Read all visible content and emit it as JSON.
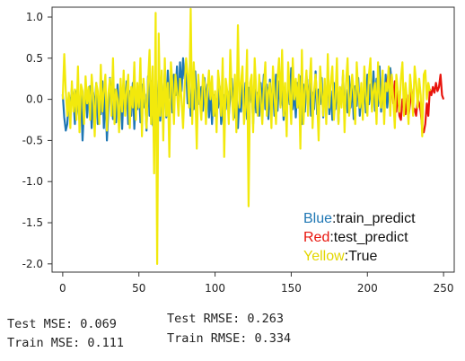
{
  "chart_data": {
    "type": "line",
    "title": "",
    "xlabel": "",
    "ylabel": "",
    "xlim": [
      -7,
      257
    ],
    "ylim": [
      -2.1,
      1.12
    ],
    "x_ticks": [
      0,
      50,
      100,
      150,
      200,
      250
    ],
    "y_ticks": [
      1.0,
      0.5,
      0.0,
      -0.5,
      -1.0,
      -1.5,
      -2.0
    ],
    "grid": false,
    "series": [
      {
        "color": "#1f77b4",
        "start": 0,
        "values": [
          0.06,
          -0.22,
          -0.38,
          -0.3,
          0.05,
          -0.1,
          0.14,
          0.0,
          -0.3,
          0.1,
          -0.05,
          -0.26,
          0.06,
          -0.5,
          -0.1,
          0.17,
          -0.22,
          0.04,
          0.16,
          -0.35,
          0.08,
          -0.14,
          0.2,
          -0.3,
          0.0,
          -0.18,
          0.22,
          -0.35,
          0.1,
          -0.5,
          -0.12,
          0.26,
          -0.05,
          -0.24,
          0.12,
          -0.28,
          0.18,
          -0.12,
          0.06,
          -0.36,
          0.14,
          -0.08,
          0.22,
          -0.3,
          0.1,
          -0.2,
          0.2,
          -0.36,
          0.06,
          -0.12,
          0.14,
          -0.28,
          0.18,
          -0.1,
          0.06,
          -0.38,
          0.28,
          -0.2,
          0.22,
          -0.3,
          -0.35,
          0.12,
          -0.18,
          0.3,
          -0.26,
          0.14,
          -0.08,
          0.32,
          -0.22,
          0.35,
          0.02,
          0.24,
          -0.16,
          0.3,
          0.05,
          0.4,
          -0.1,
          0.45,
          0.1,
          0.5,
          0.25,
          0.35,
          -0.05,
          0.22,
          -0.2,
          0.18,
          -0.12,
          0.34,
          -0.08,
          0.2,
          -0.06,
          0.15,
          -0.14,
          0.26,
          -0.04,
          0.18,
          -0.22,
          0.1,
          -0.3,
          0.05,
          -0.2,
          0.0,
          -0.1,
          0.16,
          -0.3,
          -0.15,
          0.05,
          -0.12,
          0.1,
          -0.2,
          0.06,
          0.25,
          -0.06,
          -0.22,
          0.1,
          -0.35,
          0.02,
          -0.15,
          0.18,
          -0.1,
          0.2,
          -0.24,
          0.14,
          -0.04,
          0.22,
          -0.3,
          0.12,
          -0.16,
          0.08,
          -0.2,
          0.2,
          -0.08,
          0.3,
          -0.12,
          0.18,
          -0.24,
          0.24,
          -0.1,
          0.16,
          -0.2,
          0.3,
          -0.14,
          0.22,
          -0.08,
          0.12,
          -0.25,
          0.05,
          -0.18,
          0.18,
          -0.06,
          0.38,
          -0.12,
          0.1,
          -0.22,
          0.2,
          -0.1,
          0.28,
          -0.3,
          0.18,
          -0.15,
          0.3,
          -0.05,
          0.24,
          -0.2,
          0.08,
          -0.12,
          0.34,
          -0.18,
          0.12,
          -0.06,
          0.26,
          -0.22,
          0.16,
          -0.1,
          0.32,
          -0.18,
          0.1,
          -0.25,
          0.2,
          -0.12,
          0.22,
          -0.28,
          0.14,
          -0.05,
          0.3,
          -0.2,
          0.12,
          -0.16,
          0.28,
          -0.1,
          0.2,
          -0.24,
          0.16,
          -0.08,
          0.26,
          -0.2,
          0.1,
          -0.12,
          0.22,
          -0.16,
          0.3,
          -0.06,
          0.18,
          -0.12,
          0.34,
          -0.14,
          0.25,
          -0.08,
          0.4,
          -0.15,
          0.2,
          -0.2,
          0.3,
          -0.1,
          0.12,
          0.38,
          0.2
        ]
      },
      {
        "color": "#e8150d",
        "start": 213,
        "values": [
          0.2,
          0.35,
          0.12,
          0.28,
          -0.05,
          0.22,
          -0.15,
          0.1,
          -0.2,
          -0.25,
          0.0,
          -0.1,
          -0.18,
          0.05,
          -0.22,
          -0.05,
          0.12,
          -0.1,
          -0.12,
          -0.2,
          0.0,
          -0.05,
          -0.15,
          -0.35,
          -0.4,
          -0.3,
          -0.05,
          -0.2,
          0.12,
          0.05,
          0.15,
          0.08,
          0.2,
          0.1,
          0.15,
          0.3,
          0.05,
          0.0
        ]
      },
      {
        "color": "#f2e90c",
        "start": 0,
        "values": [
          0.0,
          0.55,
          0.1,
          -0.2,
          0.08,
          -0.35,
          0.22,
          -0.15,
          0.12,
          -0.25,
          0.4,
          -0.4,
          0.18,
          0.1,
          -0.3,
          0.28,
          -0.05,
          0.15,
          -0.25,
          0.3,
          0.05,
          -0.45,
          0.2,
          0.1,
          -0.3,
          0.42,
          -0.15,
          0.1,
          0.3,
          -0.38,
          0.08,
          0.25,
          -0.2,
          0.5,
          -0.3,
          0.12,
          0.0,
          -0.4,
          0.25,
          -0.15,
          0.35,
          -0.2,
          0.1,
          0.3,
          -0.35,
          0.15,
          -0.1,
          0.45,
          -0.25,
          0.2,
          -0.1,
          0.5,
          -0.45,
          0.25,
          0.0,
          -0.35,
          0.2,
          0.6,
          -0.3,
          0.4,
          -0.9,
          1.05,
          -2.0,
          0.8,
          -0.2,
          0.35,
          -0.5,
          0.5,
          -0.2,
          0.2,
          -0.7,
          0.45,
          0.2,
          -0.3,
          0.3,
          0.1,
          -0.2,
          0.25,
          0.0,
          -0.35,
          0.15,
          0.5,
          0.3,
          -0.1,
          1.1,
          -0.3,
          0.45,
          0.1,
          -0.6,
          0.3,
          0.0,
          -0.25,
          0.3,
          0.2,
          -0.3,
          0.12,
          0.35,
          0.0,
          0.28,
          -0.2,
          0.1,
          -0.4,
          0.35,
          0.15,
          -0.2,
          0.5,
          -0.7,
          0.25,
          0.1,
          -0.3,
          0.6,
          0.05,
          -0.25,
          0.3,
          -0.4,
          0.9,
          -0.1,
          0.2,
          0.4,
          -0.3,
          -0.1,
          0.6,
          -1.3,
          0.2,
          0.3,
          -0.4,
          0.5,
          0.1,
          -0.2,
          0.3,
          0.0,
          -0.3,
          0.15,
          0.45,
          -0.2,
          0.1,
          0.2,
          -0.35,
          0.4,
          0.05,
          -0.3,
          0.25,
          0.5,
          -0.1,
          0.6,
          -0.2,
          0.2,
          -0.45,
          0.45,
          0.1,
          -0.3,
          0.5,
          0.0,
          0.25,
          -0.1,
          0.3,
          -0.6,
          0.6,
          -0.3,
          0.1,
          0.35,
          -0.2,
          0.2,
          0.5,
          -0.35,
          0.1,
          0.3,
          0.0,
          -0.5,
          0.4,
          0.1,
          -0.2,
          0.25,
          -0.3,
          0.55,
          -0.1,
          0.2,
          0.4,
          -0.25,
          0.0,
          0.5,
          -0.3,
          0.15,
          -0.1,
          0.35,
          -0.4,
          0.2,
          0.5,
          -0.2,
          0.0,
          0.3,
          0.1,
          -0.3,
          0.45,
          0.1,
          -0.1,
          0.2,
          -0.25,
          0.4,
          0.05,
          -0.2,
          0.3,
          0.5,
          -0.15,
          0.1,
          0.2,
          -0.3,
          0.45,
          0.0,
          -0.1,
          0.35,
          -0.3,
          0.2,
          0.1,
          0.4,
          -0.2,
          0.3,
          0.0,
          -0.35,
          0.3,
          0.1,
          -0.15,
          0.25,
          0.45,
          -0.2,
          0.2,
          0.0,
          -0.3,
          0.3,
          0.1,
          -0.2,
          0.4,
          0.2,
          -0.1,
          0.25,
          0.05,
          -0.45,
          0.3,
          0.35,
          0.0,
          0.2,
          0.1
        ]
      }
    ],
    "legend": {
      "position": "bottom-right",
      "entries": [
        {
          "color_word": "Blue",
          "label": ":train_predict",
          "color": "#1f77b4"
        },
        {
          "color_word": "Red",
          "label": ":test_predict",
          "color": "#e8150d"
        },
        {
          "color_word": "Yellow",
          "label": ":True",
          "color": "#e3d600"
        }
      ]
    }
  },
  "metrics": {
    "test_mse": "Test MSE: 0.069",
    "train_mse": "Train MSE: 0.111",
    "test_rmse": "Test RMSE: 0.263",
    "train_rmse": "Train RMSE: 0.334"
  }
}
